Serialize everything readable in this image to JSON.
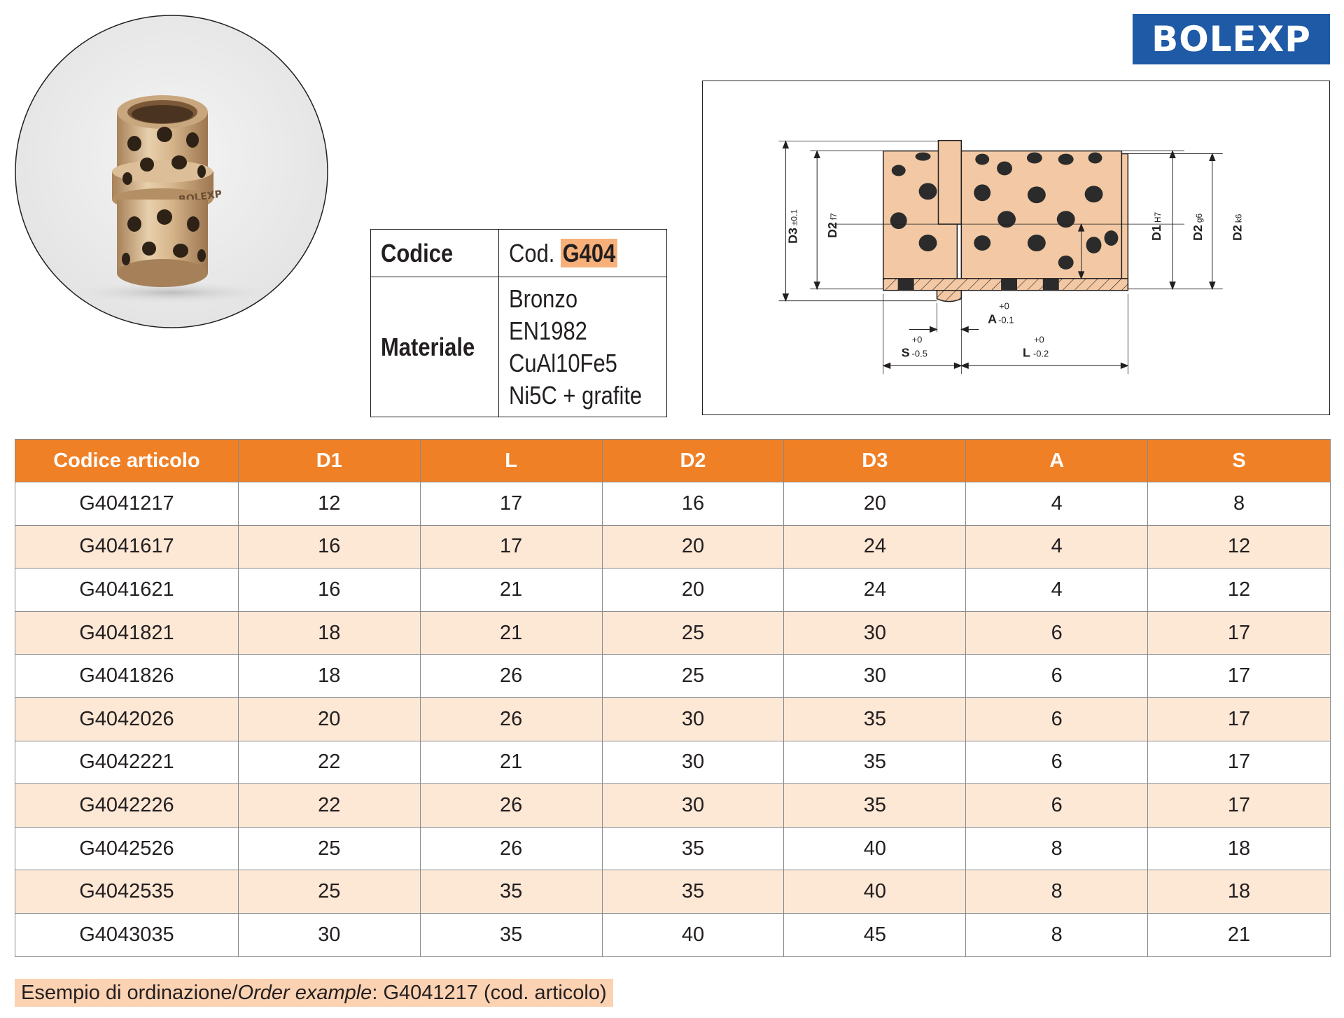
{
  "brand": {
    "logo_text": "BOLEXP",
    "color": "#1f5aa6"
  },
  "product_photo": {
    "engraving": "BOLEXP"
  },
  "spec": {
    "code_label": "Codice",
    "code_prefix": "Cod.",
    "code_value": "G404",
    "material_label": "Materiale",
    "material_lines": [
      "Bronzo",
      "EN1982",
      "CuAl10Fe5",
      "Ni5C + grafite"
    ]
  },
  "drawing": {
    "labels": {
      "d3": "D3",
      "d3_tol": "±0.1",
      "d2_left": "D2",
      "d2_left_tol": "f7",
      "d1": "D1",
      "d1_tol": "H7",
      "d2_g": "D2",
      "d2_g_tol": "g6",
      "d2_k": "D2",
      "d2_k_tol": "k6",
      "a": "A",
      "a_tol_up": "+0",
      "a_tol_down": "-0.1",
      "s": "S",
      "s_tol_up": "+0",
      "s_tol_down": "-0.5",
      "l": "L",
      "l_tol_up": "+0",
      "l_tol_down": "-0.2"
    }
  },
  "table": {
    "headers": [
      "Codice articolo",
      "D1",
      "L",
      "D2",
      "D3",
      "A",
      "S"
    ],
    "rows": [
      [
        "G4041217",
        "12",
        "17",
        "16",
        "20",
        "4",
        "8"
      ],
      [
        "G4041617",
        "16",
        "17",
        "20",
        "24",
        "4",
        "12"
      ],
      [
        "G4041621",
        "16",
        "21",
        "20",
        "24",
        "4",
        "12"
      ],
      [
        "G4041821",
        "18",
        "21",
        "25",
        "30",
        "6",
        "17"
      ],
      [
        "G4041826",
        "18",
        "26",
        "25",
        "30",
        "6",
        "17"
      ],
      [
        "G4042026",
        "20",
        "26",
        "30",
        "35",
        "6",
        "17"
      ],
      [
        "G4042221",
        "22",
        "21",
        "30",
        "35",
        "6",
        "17"
      ],
      [
        "G4042226",
        "22",
        "26",
        "30",
        "35",
        "6",
        "17"
      ],
      [
        "G4042526",
        "25",
        "26",
        "35",
        "40",
        "8",
        "18"
      ],
      [
        "G4042535",
        "25",
        "35",
        "35",
        "40",
        "8",
        "18"
      ],
      [
        "G4043035",
        "30",
        "35",
        "40",
        "45",
        "8",
        "21"
      ]
    ]
  },
  "order_example": {
    "prefix": "Esempio di ordinazione/",
    "prefix_italic": "Order example",
    "sep": ": ",
    "value": "G4041217 (cod. articolo)"
  },
  "colors": {
    "header_orange": "#f08026",
    "row_stripe": "#fde8d6",
    "highlight": "#f7b079"
  }
}
